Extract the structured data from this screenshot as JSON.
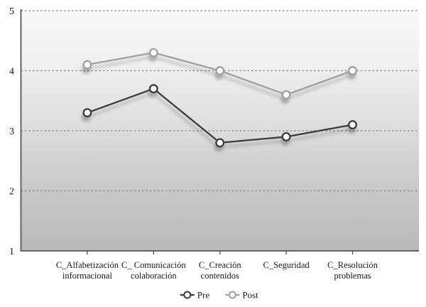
{
  "chart_data": {
    "type": "line",
    "title": "",
    "categories": [
      "C_Alfabetización informacional",
      "C_ Comunicación colaboración",
      "C_Creación contenidos",
      "C_Seguridad",
      "C_Resolución problemas"
    ],
    "category_label_lines": [
      [
        "C_Alfabetización",
        "informacional"
      ],
      [
        "C_ Comunicación",
        "colaboración"
      ],
      [
        "C_Creación",
        "contenidos"
      ],
      [
        "C_Seguridad"
      ],
      [
        "C_Resolución",
        "problemas"
      ]
    ],
    "series": [
      {
        "name": "Pre",
        "values": [
          3.3,
          3.7,
          2.8,
          2.9,
          3.1
        ],
        "color": "#3b3b3b"
      },
      {
        "name": "Post",
        "values": [
          4.1,
          4.3,
          4.0,
          3.6,
          4.0
        ],
        "color": "#9f9f9f"
      }
    ],
    "ylim": [
      1,
      5
    ],
    "yticks": [
      1,
      2,
      3,
      4,
      5
    ],
    "xlabel": "",
    "ylabel": "",
    "grid": "horizontal-dashed",
    "legend_position": "bottom-center",
    "legend_labels": [
      "Pre",
      "Post"
    ],
    "marker": "open-circle-white-fill",
    "colors": {
      "gridline": "#858585",
      "axis": "#555555",
      "tick_label": "#1a1a1a",
      "plot_bg_gradient": [
        "#f9f9f9",
        "#eeeeee",
        "#dcdcdc",
        "#c8c8c8",
        "#b9b9b9"
      ],
      "page_bg": "#ffffff"
    }
  }
}
